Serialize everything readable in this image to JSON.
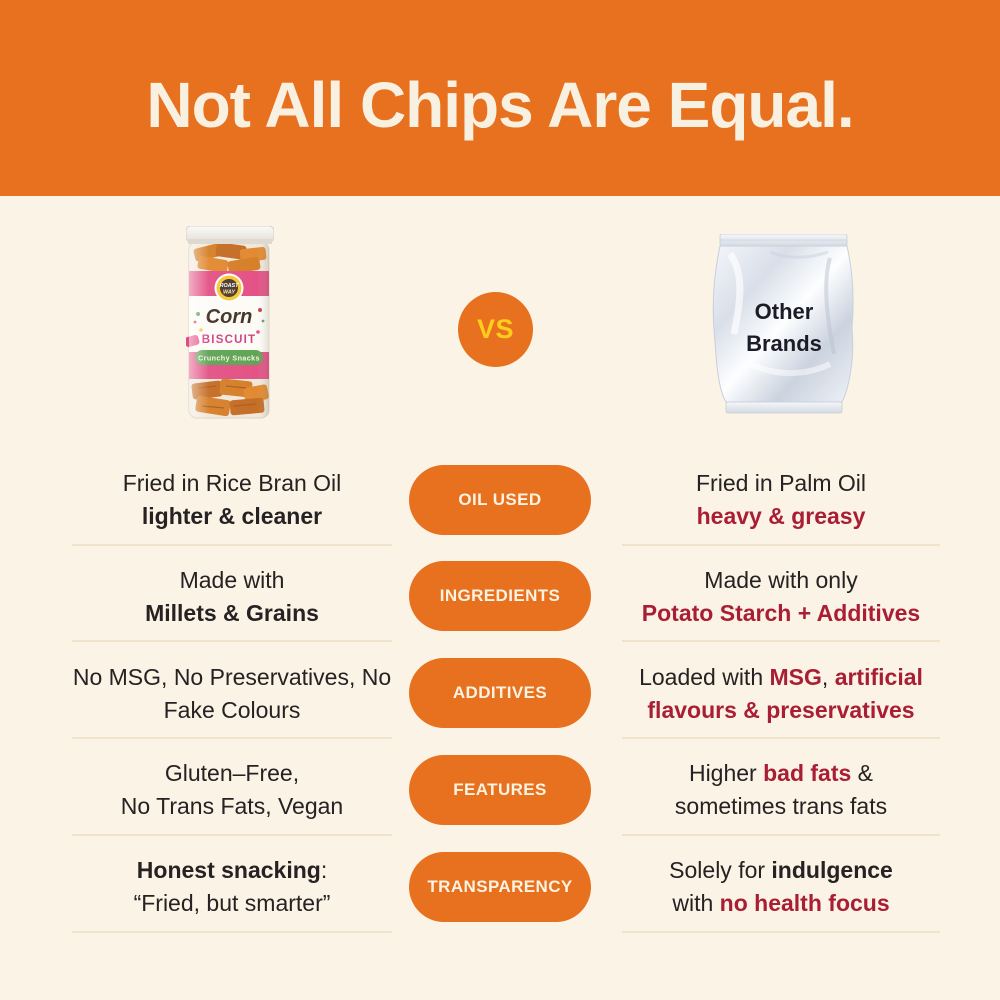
{
  "header": {
    "title": "Not All Chips Are Equal."
  },
  "versus": {
    "label": "VS"
  },
  "products": {
    "roastway": {
      "badge_line1": "ROAST",
      "badge_line2": "WAY",
      "name_script": "Corn",
      "name_caps": "BISCUIT",
      "ribbon": "Crunchy Snacks"
    },
    "other_brands": {
      "line1": "Other",
      "line2": "Brands"
    }
  },
  "comparison": {
    "rows": [
      {
        "category": "OIL USED",
        "left_lines": [
          [
            {
              "text": "Fried in Rice Bran Oil"
            }
          ],
          [
            {
              "text": "lighter & cleaner",
              "bold": true
            }
          ]
        ],
        "right_lines": [
          [
            {
              "text": "Fried in Palm Oil"
            }
          ],
          [
            {
              "text": "heavy & greasy",
              "bold": true,
              "crimson": true
            }
          ]
        ]
      },
      {
        "category": "INGREDIENTS",
        "left_lines": [
          [
            {
              "text": "Made with"
            }
          ],
          [
            {
              "text": "Millets & Grains",
              "bold": true
            }
          ]
        ],
        "right_lines": [
          [
            {
              "text": "Made with only"
            }
          ],
          [
            {
              "text": "Potato Starch + Additives",
              "bold": true,
              "crimson": true
            }
          ]
        ]
      },
      {
        "category": "ADDITIVES",
        "left_lines": [
          [
            {
              "text": "No MSG, No Preservatives, No"
            }
          ],
          [
            {
              "text": "Fake Colours"
            }
          ]
        ],
        "right_lines": [
          [
            {
              "text": "Loaded with "
            },
            {
              "text": "MSG",
              "bold": true,
              "crimson": true
            },
            {
              "text": ", "
            },
            {
              "text": "artificial",
              "bold": true,
              "crimson": true
            }
          ],
          [
            {
              "text": "flavours & preservatives",
              "bold": true,
              "crimson": true
            }
          ]
        ]
      },
      {
        "category": "FEATURES",
        "left_lines": [
          [
            {
              "text": "Gluten–Free,"
            }
          ],
          [
            {
              "text": "No Trans Fats, Vegan"
            }
          ]
        ],
        "right_lines": [
          [
            {
              "text": "Higher "
            },
            {
              "text": "bad fats",
              "bold": true,
              "crimson": true
            },
            {
              "text": " &"
            }
          ],
          [
            {
              "text": "sometimes trans fats"
            }
          ]
        ]
      },
      {
        "category": "TRANSPARENCY",
        "left_lines": [
          [
            {
              "text": "Honest snacking",
              "bold": true
            },
            {
              "text": ":"
            }
          ],
          [
            {
              "text": "“Fried, but smarter”"
            }
          ]
        ],
        "right_lines": [
          [
            {
              "text": "Solely for "
            },
            {
              "text": "indulgence",
              "bold": true
            }
          ],
          [
            {
              "text": "with "
            },
            {
              "text": "no health focus",
              "bold": true,
              "crimson": true
            }
          ]
        ]
      }
    ]
  },
  "colors": {
    "orange": "#E7711E",
    "crimson": "#A91E35",
    "dark_text": "#262122",
    "cream_background": "#FAF3E6",
    "header_text": "#F8F0E1",
    "pill_text": "#FCF3E3",
    "vs_yellow": "#FFCE1C",
    "divider": "#F1E2CB",
    "label_pink": "#E24A80",
    "ribbon_green": "#58A04D"
  }
}
